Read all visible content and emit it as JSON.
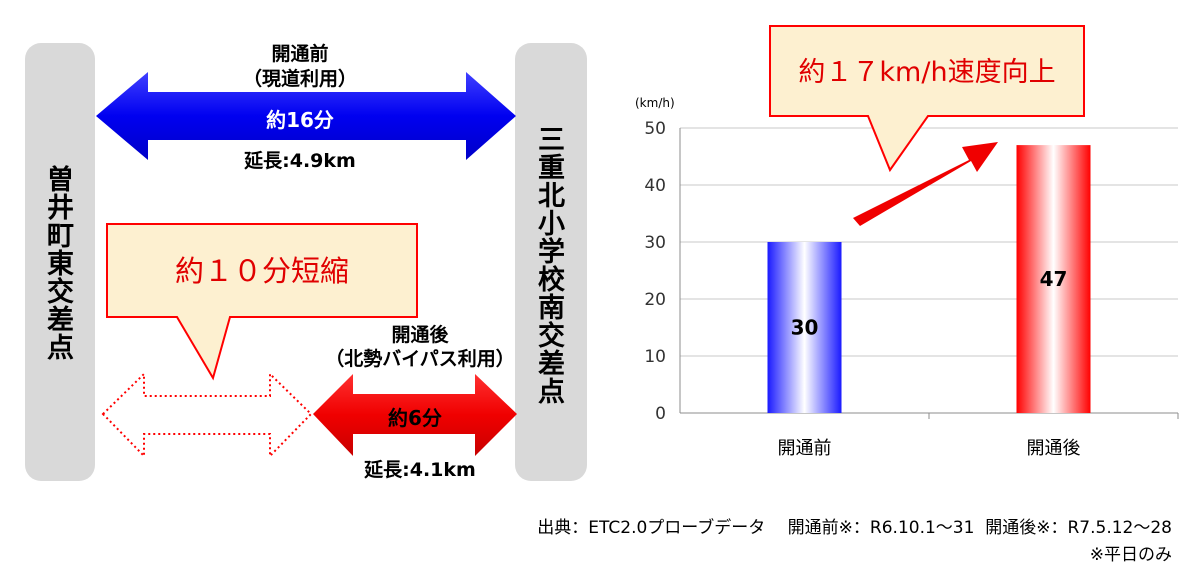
{
  "left_diagram": {
    "left_point": "曽井町東交差点",
    "right_point": "三重北小学校南交差点",
    "before": {
      "title": "開通前",
      "route": "（現道利用）",
      "time": "約16分",
      "length": "延長:4.9km"
    },
    "after": {
      "title": "開通後",
      "route": "（北勢バイパス利用）",
      "time": "約6分",
      "length": "延長:4.1km"
    },
    "callout": "約１０分短縮",
    "colors": {
      "before_arrow": "#0000ff",
      "after_arrow": "#ff0000",
      "callout_bg": "#fdf0d0",
      "callout_border": "#ff0000"
    }
  },
  "chart_callout": "約１７km/h速度向上",
  "chart_data": {
    "type": "bar",
    "categories": [
      "開通前",
      "開通後"
    ],
    "values": [
      30,
      47
    ],
    "value_labels": [
      "30",
      "47"
    ],
    "unit_label": "(km/h)",
    "ylim": [
      0,
      50
    ],
    "yticks": [
      "0",
      "10",
      "20",
      "30",
      "40",
      "50"
    ],
    "grid": true,
    "colors": [
      "#1a1aff",
      "#ff0000"
    ]
  },
  "footnotes": {
    "source": "出典：ETC2.0プローブデータ　 開通前※：R6.10.1～31  開通後※：R7.5.12～28",
    "note": "※平日のみ"
  }
}
